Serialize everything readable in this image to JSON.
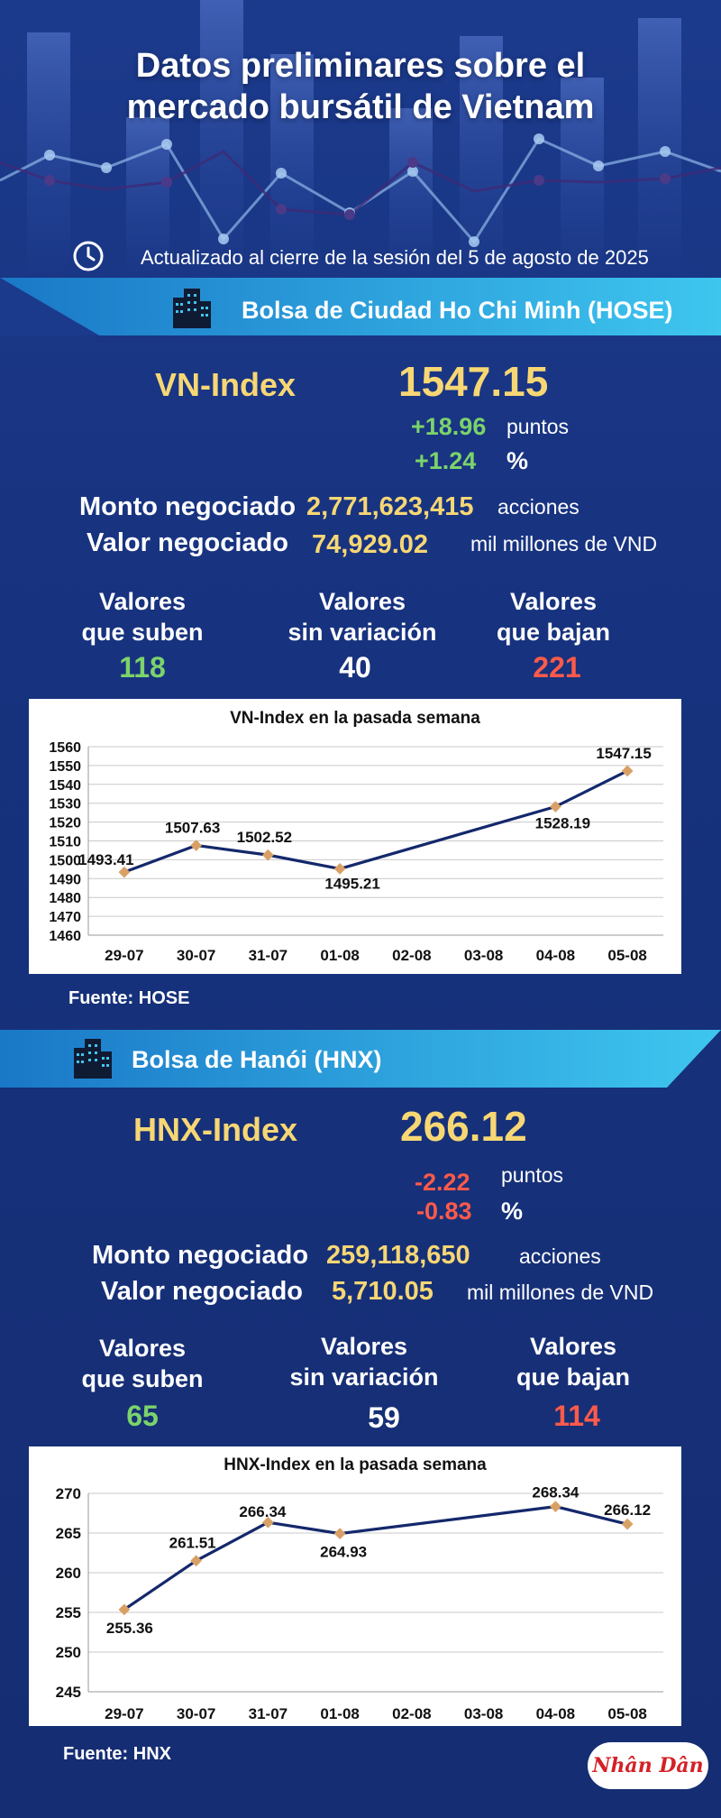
{
  "header": {
    "title_line1": "Datos preliminares sobre el",
    "title_line2": "mercado bursátil de Vietnam",
    "updated": "Actualizado al cierre de la sesión del 5 de agosto de 2025"
  },
  "hose": {
    "banner": "Bolsa de Ciudad Ho Chi Minh (HOSE)",
    "index_name": "VN-Index",
    "index_value": "1547.15",
    "change_points": "+18.96",
    "points_label": "puntos",
    "change_pct": "+1.24",
    "pct_label": "%",
    "volume_label": "Monto negociado",
    "volume_value": "2,771,623,415",
    "volume_unit": "acciones",
    "value_label": "Valor negociado",
    "value_value": "74,929.02",
    "value_unit": "mil millones de VND",
    "up_label_1": "Valores",
    "up_label_2": "que suben",
    "up_count": "118",
    "flat_label_1": "Valores",
    "flat_label_2": "sin variación",
    "flat_count": "40",
    "down_label_1": "Valores",
    "down_label_2": "que bajan",
    "down_count": "221",
    "source": "Fuente: HOSE"
  },
  "hnx": {
    "banner": "Bolsa de Hanói (HNX)",
    "index_name": "HNX-Index",
    "index_value": "266.12",
    "change_points": "-2.22",
    "points_label": "puntos",
    "change_pct": "-0.83",
    "pct_label": "%",
    "volume_label": "Monto negociado",
    "volume_value": "259,118,650",
    "volume_unit": "acciones",
    "value_label": "Valor negociado",
    "value_value": "5,710.05",
    "value_unit": "mil millones de VND",
    "up_label_1": "Valores",
    "up_label_2": "que suben",
    "up_count": "65",
    "flat_label_1": "Valores",
    "flat_label_2": "sin variación",
    "flat_count": "59",
    "down_label_1": "Valores",
    "down_label_2": "que bajan",
    "down_count": "114",
    "source": "Fuente:  HNX"
  },
  "logo": {
    "text": "Nhân Dân"
  },
  "colors": {
    "accent_yellow": "#f7d774",
    "up_green": "#7cd36b",
    "down_red": "#ff5a4a",
    "line": "#14286b",
    "marker": "#d9a066"
  },
  "chart_data": [
    {
      "type": "line",
      "title": "VN-Index en la pasada semana",
      "categories": [
        "29-07",
        "30-07",
        "31-07",
        "01-08",
        "02-08",
        "03-08",
        "04-08",
        "05-08"
      ],
      "points": [
        {
          "x": "29-07",
          "y": 1493.41,
          "label": "1493.41"
        },
        {
          "x": "30-07",
          "y": 1507.63,
          "label": "1507.63"
        },
        {
          "x": "31-07",
          "y": 1502.52,
          "label": "1502.52"
        },
        {
          "x": "01-08",
          "y": 1495.21,
          "label": "1495.21"
        },
        {
          "x": "04-08",
          "y": 1528.19,
          "label": "1528.19"
        },
        {
          "x": "05-08",
          "y": 1547.15,
          "label": "1547.15"
        }
      ],
      "ylim": [
        1460,
        1560
      ],
      "yticks": [
        1460,
        1470,
        1480,
        1490,
        1500,
        1510,
        1520,
        1530,
        1540,
        1550,
        1560
      ],
      "grid": true
    },
    {
      "type": "line",
      "title": "HNX-Index en la pasada semana",
      "categories": [
        "29-07",
        "30-07",
        "31-07",
        "01-08",
        "02-08",
        "03-08",
        "04-08",
        "05-08"
      ],
      "points": [
        {
          "x": "29-07",
          "y": 255.36,
          "label": "255.36"
        },
        {
          "x": "30-07",
          "y": 261.51,
          "label": "261.51"
        },
        {
          "x": "31-07",
          "y": 266.34,
          "label": "266.34"
        },
        {
          "x": "01-08",
          "y": 264.93,
          "label": "264.93"
        },
        {
          "x": "04-08",
          "y": 268.34,
          "label": "268.34"
        },
        {
          "x": "05-08",
          "y": 266.12,
          "label": "266.12"
        }
      ],
      "ylim": [
        245,
        270
      ],
      "yticks": [
        245,
        250,
        255,
        260,
        265,
        270
      ],
      "grid": true
    }
  ]
}
